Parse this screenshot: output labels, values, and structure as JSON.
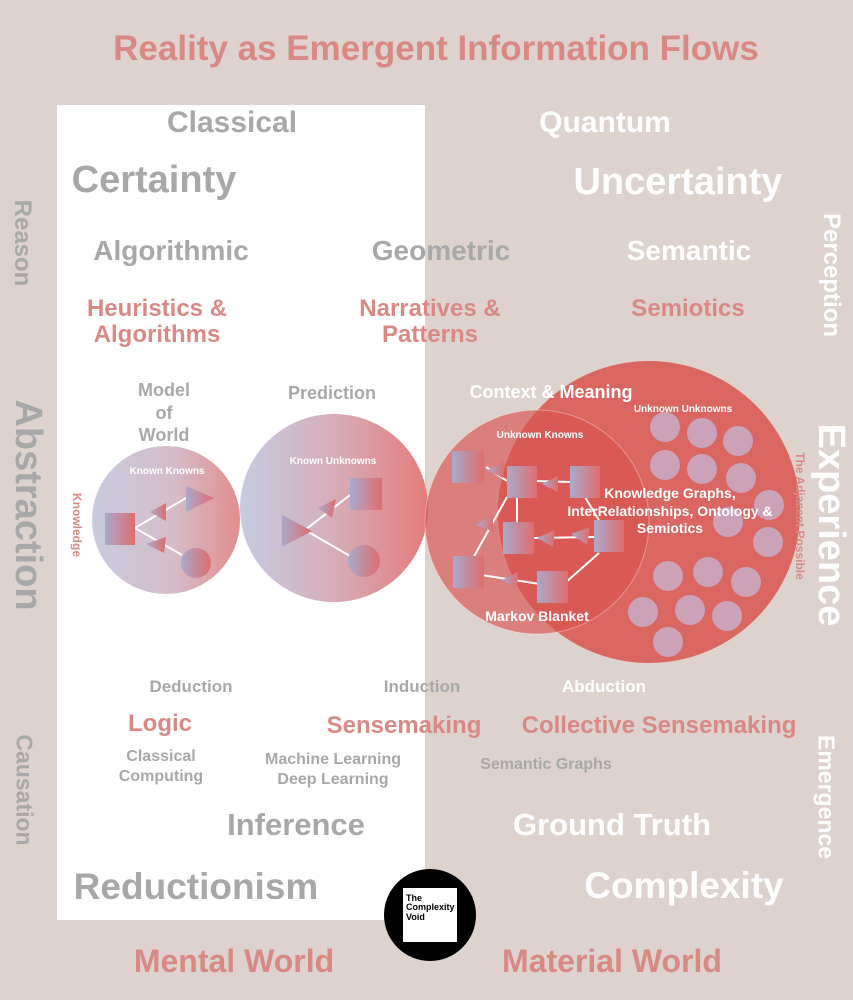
{
  "title": "Reality as Emergent Information Flows",
  "columns": {
    "classical": "Classical",
    "quantum": "Quantum",
    "certainty": "Certainty",
    "uncertainty": "Uncertainty"
  },
  "rows": {
    "algorithmic": "Algorithmic",
    "geometric": "Geometric",
    "semantic": "Semantic",
    "heuristics": "Heuristics & Algorithms",
    "narratives": "Narratives & Patterns",
    "semiotics": "Semiotics",
    "model_of_world": "Model of World",
    "prediction": "Prediction",
    "context_meaning": "Context & Meaning"
  },
  "circles": {
    "known_knowns": "Known Knowns",
    "known_unknowns": "Known Unknowns",
    "unknown_knowns": "Unknown Knowns",
    "unknown_unknowns": "Unknown Unknowns",
    "knowledge_graphs": "Knowledge Graphs, InterRelationships, Ontology & Semiotics",
    "markov_blanket": "Markov Blanket"
  },
  "side_labels": {
    "reason": "Reason",
    "abstraction": "Abstraction",
    "causation": "Causation",
    "knowledge": "Knowledge",
    "perception": "Perception",
    "experience": "Experience",
    "emergence": "Emergence",
    "adjacent_possible": "The Adjacent Possible"
  },
  "reasoning": {
    "deduction": "Deduction",
    "induction": "Induction",
    "abduction": "Abduction",
    "logic": "Logic",
    "sensemaking": "Sensemaking",
    "collective_sensemaking": "Collective Sensemaking",
    "classical_computing": "Classical Computing",
    "ml_dl": "Machine Learning Deep Learning",
    "semantic_graphs": "Semantic Graphs",
    "inference": "Inference",
    "ground_truth": "Ground Truth",
    "reductionism": "Reductionism",
    "complexity": "Complexity",
    "mental_world": "Mental World",
    "material_world": "Material World"
  },
  "logo": {
    "text": "The Complexity Void"
  },
  "colors": {
    "background": "#ddd2cd",
    "panel": "#ffffff",
    "pink_text": "#d98984",
    "grey_text": "#a8a8a8",
    "circle_red": "#d9534f"
  }
}
